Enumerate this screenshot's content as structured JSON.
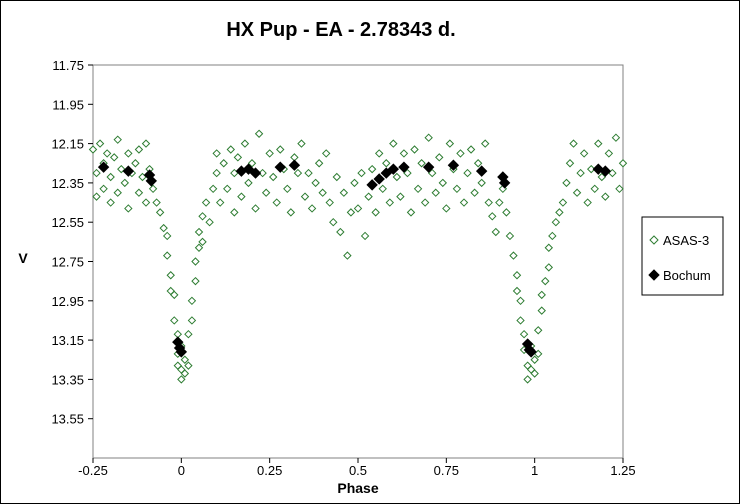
{
  "chart_data": {
    "type": "scatter",
    "title": "HX Pup - EA - 2.78343 d.",
    "xlabel": "Phase",
    "ylabel": "V",
    "xlim": [
      -0.25,
      1.25
    ],
    "ylim": [
      11.75,
      13.75
    ],
    "y_inverted": true,
    "x_ticks": [
      "-0.25",
      "0",
      "0.25",
      "0.5",
      "0.75",
      "1",
      "1.25"
    ],
    "x_tick_values": [
      -0.25,
      0,
      0.25,
      0.5,
      0.75,
      1,
      1.25
    ],
    "y_ticks": [
      "11.75",
      "11.95",
      "12.15",
      "12.35",
      "12.55",
      "12.75",
      "12.95",
      "13.15",
      "13.35",
      "13.55"
    ],
    "y_tick_values": [
      11.75,
      11.95,
      12.15,
      12.35,
      12.55,
      12.75,
      12.95,
      13.15,
      13.35,
      13.55
    ],
    "grid": false,
    "legend_position": "right",
    "series": [
      {
        "name": "ASAS-3",
        "marker": "open-diamond",
        "color": "#2e7d32",
        "points": [
          [
            -0.25,
            12.18
          ],
          [
            -0.24,
            12.3
          ],
          [
            -0.24,
            12.42
          ],
          [
            -0.23,
            12.15
          ],
          [
            -0.22,
            12.25
          ],
          [
            -0.22,
            12.38
          ],
          [
            -0.21,
            12.2
          ],
          [
            -0.2,
            12.45
          ],
          [
            -0.2,
            12.32
          ],
          [
            -0.19,
            12.22
          ],
          [
            -0.18,
            12.13
          ],
          [
            -0.18,
            12.4
          ],
          [
            -0.17,
            12.28
          ],
          [
            -0.16,
            12.35
          ],
          [
            -0.15,
            12.2
          ],
          [
            -0.15,
            12.48
          ],
          [
            -0.14,
            12.3
          ],
          [
            -0.13,
            12.25
          ],
          [
            -0.12,
            12.4
          ],
          [
            -0.12,
            12.18
          ],
          [
            -0.11,
            12.32
          ],
          [
            -0.1,
            12.45
          ],
          [
            -0.1,
            12.15
          ],
          [
            -0.09,
            12.28
          ],
          [
            -0.08,
            12.38
          ],
          [
            -0.07,
            12.45
          ],
          [
            -0.06,
            12.5
          ],
          [
            -0.05,
            12.58
          ],
          [
            -0.04,
            12.62
          ],
          [
            -0.04,
            12.72
          ],
          [
            -0.03,
            12.82
          ],
          [
            -0.03,
            12.9
          ],
          [
            -0.02,
            12.92
          ],
          [
            -0.02,
            13.05
          ],
          [
            -0.01,
            13.12
          ],
          [
            -0.01,
            13.22
          ],
          [
            -0.01,
            13.28
          ],
          [
            0.0,
            13.3
          ],
          [
            0.0,
            13.35
          ],
          [
            0.0,
            13.18
          ],
          [
            0.01,
            13.25
          ],
          [
            0.01,
            13.32
          ],
          [
            0.02,
            13.28
          ],
          [
            0.02,
            13.12
          ],
          [
            0.03,
            13.05
          ],
          [
            0.03,
            12.95
          ],
          [
            0.04,
            12.85
          ],
          [
            0.04,
            12.75
          ],
          [
            0.05,
            12.68
          ],
          [
            0.05,
            12.6
          ],
          [
            0.06,
            12.65
          ],
          [
            0.06,
            12.52
          ],
          [
            0.07,
            12.45
          ],
          [
            0.08,
            12.55
          ],
          [
            0.09,
            12.38
          ],
          [
            0.1,
            12.2
          ],
          [
            0.1,
            12.3
          ],
          [
            0.11,
            12.45
          ],
          [
            0.12,
            12.25
          ],
          [
            0.13,
            12.38
          ],
          [
            0.14,
            12.18
          ],
          [
            0.15,
            12.5
          ],
          [
            0.15,
            12.3
          ],
          [
            0.16,
            12.22
          ],
          [
            0.17,
            12.42
          ],
          [
            0.18,
            12.15
          ],
          [
            0.19,
            12.35
          ],
          [
            0.2,
            12.25
          ],
          [
            0.21,
            12.48
          ],
          [
            0.22,
            12.1
          ],
          [
            0.23,
            12.3
          ],
          [
            0.24,
            12.4
          ],
          [
            0.25,
            12.2
          ],
          [
            0.26,
            12.32
          ],
          [
            0.27,
            12.45
          ],
          [
            0.28,
            12.18
          ],
          [
            0.29,
            12.28
          ],
          [
            0.3,
            12.38
          ],
          [
            0.31,
            12.5
          ],
          [
            0.32,
            12.22
          ],
          [
            0.33,
            12.3
          ],
          [
            0.34,
            12.15
          ],
          [
            0.35,
            12.42
          ],
          [
            0.36,
            12.3
          ],
          [
            0.37,
            12.48
          ],
          [
            0.38,
            12.35
          ],
          [
            0.39,
            12.25
          ],
          [
            0.4,
            12.4
          ],
          [
            0.41,
            12.2
          ],
          [
            0.42,
            12.45
          ],
          [
            0.43,
            12.55
          ],
          [
            0.44,
            12.32
          ],
          [
            0.45,
            12.6
          ],
          [
            0.46,
            12.4
          ],
          [
            0.47,
            12.72
          ],
          [
            0.48,
            12.5
          ],
          [
            0.49,
            12.35
          ],
          [
            0.5,
            12.48
          ],
          [
            0.51,
            12.3
          ],
          [
            0.52,
            12.62
          ],
          [
            0.53,
            12.42
          ],
          [
            0.54,
            12.28
          ],
          [
            0.55,
            12.5
          ],
          [
            0.56,
            12.2
          ],
          [
            0.57,
            12.38
          ],
          [
            0.58,
            12.25
          ],
          [
            0.59,
            12.45
          ],
          [
            0.6,
            12.15
          ],
          [
            0.61,
            12.32
          ],
          [
            0.62,
            12.42
          ],
          [
            0.63,
            12.2
          ],
          [
            0.64,
            12.3
          ],
          [
            0.65,
            12.5
          ],
          [
            0.66,
            12.18
          ],
          [
            0.67,
            12.38
          ],
          [
            0.68,
            12.25
          ],
          [
            0.69,
            12.45
          ],
          [
            0.7,
            12.12
          ],
          [
            0.71,
            12.3
          ],
          [
            0.72,
            12.4
          ],
          [
            0.73,
            12.22
          ],
          [
            0.74,
            12.35
          ],
          [
            0.75,
            12.48
          ],
          [
            0.76,
            12.15
          ],
          [
            0.77,
            12.28
          ],
          [
            0.78,
            12.38
          ],
          [
            0.79,
            12.2
          ],
          [
            0.8,
            12.45
          ],
          [
            0.81,
            12.3
          ],
          [
            0.82,
            12.18
          ],
          [
            0.83,
            12.4
          ],
          [
            0.84,
            12.25
          ],
          [
            0.85,
            12.35
          ],
          [
            0.86,
            12.15
          ],
          [
            0.87,
            12.45
          ],
          [
            0.88,
            12.52
          ],
          [
            0.89,
            12.6
          ],
          [
            0.9,
            12.45
          ],
          [
            0.91,
            12.38
          ],
          [
            0.92,
            12.5
          ],
          [
            0.93,
            12.62
          ],
          [
            0.94,
            12.72
          ],
          [
            0.95,
            12.82
          ],
          [
            0.95,
            12.9
          ],
          [
            0.96,
            12.95
          ],
          [
            0.96,
            13.05
          ],
          [
            0.97,
            13.12
          ],
          [
            0.97,
            13.2
          ],
          [
            0.98,
            13.28
          ],
          [
            0.98,
            13.35
          ],
          [
            0.99,
            13.3
          ],
          [
            0.99,
            13.18
          ],
          [
            1.0,
            13.25
          ],
          [
            1.0,
            13.32
          ],
          [
            1.01,
            13.22
          ],
          [
            1.01,
            13.1
          ],
          [
            1.02,
            13.0
          ],
          [
            1.02,
            12.92
          ],
          [
            1.03,
            12.85
          ],
          [
            1.04,
            12.78
          ],
          [
            1.04,
            12.68
          ],
          [
            1.05,
            12.62
          ],
          [
            1.06,
            12.55
          ],
          [
            1.07,
            12.5
          ],
          [
            1.08,
            12.45
          ],
          [
            1.09,
            12.35
          ],
          [
            1.1,
            12.25
          ],
          [
            1.11,
            12.15
          ],
          [
            1.12,
            12.4
          ],
          [
            1.13,
            12.3
          ],
          [
            1.14,
            12.2
          ],
          [
            1.15,
            12.45
          ],
          [
            1.16,
            12.28
          ],
          [
            1.17,
            12.38
          ],
          [
            1.18,
            12.15
          ],
          [
            1.19,
            12.32
          ],
          [
            1.2,
            12.42
          ],
          [
            1.21,
            12.2
          ],
          [
            1.22,
            12.3
          ],
          [
            1.23,
            12.12
          ],
          [
            1.24,
            12.38
          ],
          [
            1.25,
            12.25
          ]
        ]
      },
      {
        "name": "Bochum",
        "marker": "filled-diamond",
        "color": "#000000",
        "points": [
          [
            -0.22,
            12.27
          ],
          [
            -0.15,
            12.29
          ],
          [
            -0.09,
            12.31
          ],
          [
            -0.085,
            12.34
          ],
          [
            -0.01,
            13.16
          ],
          [
            -0.005,
            13.19
          ],
          [
            0.0,
            13.21
          ],
          [
            0.17,
            12.29
          ],
          [
            0.19,
            12.28
          ],
          [
            0.21,
            12.3
          ],
          [
            0.28,
            12.27
          ],
          [
            0.32,
            12.26
          ],
          [
            0.54,
            12.36
          ],
          [
            0.56,
            12.33
          ],
          [
            0.58,
            12.3
          ],
          [
            0.6,
            12.28
          ],
          [
            0.63,
            12.27
          ],
          [
            0.7,
            12.27
          ],
          [
            0.77,
            12.26
          ],
          [
            0.85,
            12.29
          ],
          [
            0.91,
            12.32
          ],
          [
            0.915,
            12.35
          ],
          [
            0.98,
            13.17
          ],
          [
            0.985,
            13.2
          ],
          [
            0.99,
            13.21
          ],
          [
            1.18,
            12.28
          ],
          [
            1.2,
            12.29
          ]
        ]
      }
    ]
  }
}
